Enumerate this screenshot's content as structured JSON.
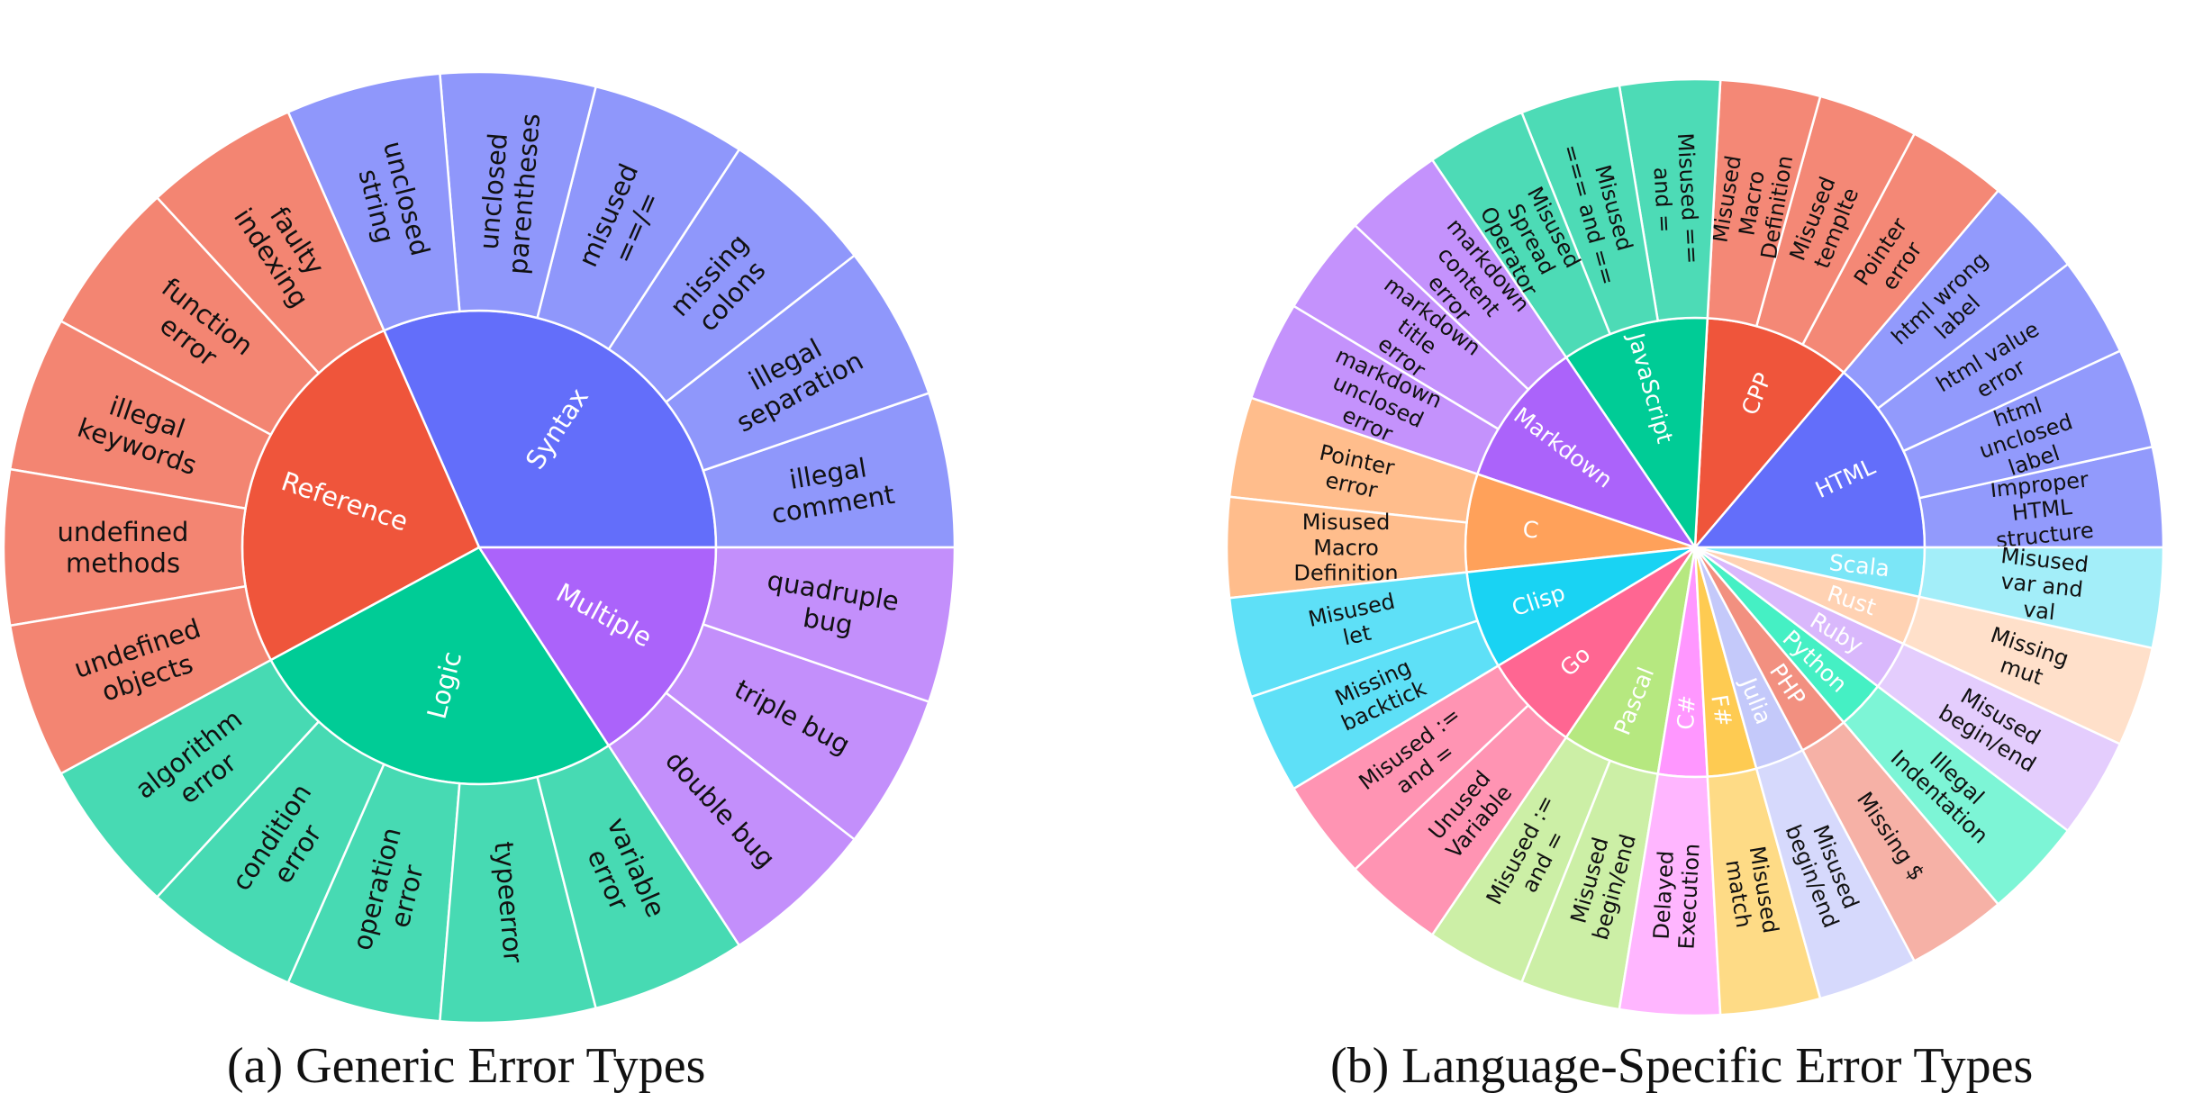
{
  "captions": {
    "a": "(a) Generic Error Types",
    "b": "(b) Language-Specific Error Types"
  },
  "chart_data": [
    {
      "type": "sunburst",
      "title": "",
      "rotation_deg": 0,
      "direction": "counterclockwise",
      "children": [
        {
          "name": "Syntax",
          "color": "#636EFA",
          "children": [
            {
              "name": "illegal comment"
            },
            {
              "name": "illegal separation"
            },
            {
              "name": "missing colons"
            },
            {
              "name": "misused ==/="
            },
            {
              "name": "unclosed parentheses"
            },
            {
              "name": "unclosed string"
            }
          ]
        },
        {
          "name": "Reference",
          "color": "#EF553B",
          "children": [
            {
              "name": "faulty indexing"
            },
            {
              "name": "function error"
            },
            {
              "name": "illegal keywords"
            },
            {
              "name": "undefined methods"
            },
            {
              "name": "undefined objects"
            }
          ]
        },
        {
          "name": "Logic",
          "color": "#00CC96",
          "children": [
            {
              "name": "algorithm error"
            },
            {
              "name": "condition error"
            },
            {
              "name": "operation error"
            },
            {
              "name": "typeerror"
            },
            {
              "name": "variable error"
            }
          ]
        },
        {
          "name": "Multiple",
          "color": "#AB63FA",
          "children": [
            {
              "name": "double bug"
            },
            {
              "name": "triple bug"
            },
            {
              "name": "quadruple bug"
            }
          ]
        }
      ]
    },
    {
      "type": "sunburst",
      "title": "",
      "rotation_deg": 0,
      "direction": "counterclockwise",
      "children": [
        {
          "name": "HTML",
          "value": 4,
          "color": "#636EFA",
          "children": [
            {
              "name": "Improper HTML structure"
            },
            {
              "name": "html unclosed label"
            },
            {
              "name": "html value error"
            },
            {
              "name": "html wrong label"
            }
          ]
        },
        {
          "name": "CPP",
          "value": 3,
          "color": "#EF553B",
          "children": [
            {
              "name": "Pointer error"
            },
            {
              "name": "Misused templte"
            },
            {
              "name": "Misused Macro Definition"
            }
          ]
        },
        {
          "name": "JavaScript",
          "value": 3,
          "color": "#00CC96",
          "children": [
            {
              "name": "Misused == and ="
            },
            {
              "name": "Misused === and =="
            },
            {
              "name": "Misused Spread Operator"
            }
          ]
        },
        {
          "name": "Markdown",
          "value": 3,
          "color": "#AB63FA",
          "children": [
            {
              "name": "markdown content error"
            },
            {
              "name": "markdown title error"
            },
            {
              "name": "markdown unclosed error"
            }
          ]
        },
        {
          "name": "C",
          "value": 2,
          "color": "#FFA15A",
          "children": [
            {
              "name": "Pointer error"
            },
            {
              "name": "Misused Macro Definition"
            }
          ]
        },
        {
          "name": "Clisp",
          "value": 2,
          "color": "#19D3F3",
          "children": [
            {
              "name": "Misused let"
            },
            {
              "name": "Missing backtick"
            }
          ]
        },
        {
          "name": "Go",
          "value": 2,
          "color": "#FF6692",
          "children": [
            {
              "name": "Misused := and ="
            },
            {
              "name": "Unused Variable"
            }
          ]
        },
        {
          "name": "Pascal",
          "value": 2,
          "color": "#B6E880",
          "children": [
            {
              "name": "Misused := and ="
            },
            {
              "name": "Misused begin/end"
            }
          ]
        },
        {
          "name": "C#",
          "value": 1,
          "color": "#FF97FF",
          "children": [
            {
              "name": "Delayed Execution"
            }
          ]
        },
        {
          "name": "F#",
          "value": 1,
          "color": "#FECB52",
          "children": [
            {
              "name": "Misused match"
            }
          ]
        },
        {
          "name": "Julia",
          "value": 1,
          "color": "#C4C9FA",
          "children": [
            {
              "name": "Misused begin/end"
            }
          ]
        },
        {
          "name": "PHP",
          "value": 1,
          "color": "#F29080",
          "children": [
            {
              "name": "Missing $"
            }
          ]
        },
        {
          "name": "Python",
          "value": 1,
          "color": "#45F0C4",
          "children": [
            {
              "name": "Illegal Indentation"
            }
          ]
        },
        {
          "name": "Ruby",
          "value": 1,
          "color": "#D9B8FC",
          "children": [
            {
              "name": "Misused begin/end"
            }
          ]
        },
        {
          "name": "Rust",
          "value": 1,
          "color": "#FFD2B3",
          "children": [
            {
              "name": "Missing mut"
            }
          ]
        },
        {
          "name": "Scala",
          "value": 1,
          "color": "#7BE6F7",
          "children": [
            {
              "name": "Misused var and val"
            }
          ]
        }
      ]
    }
  ]
}
